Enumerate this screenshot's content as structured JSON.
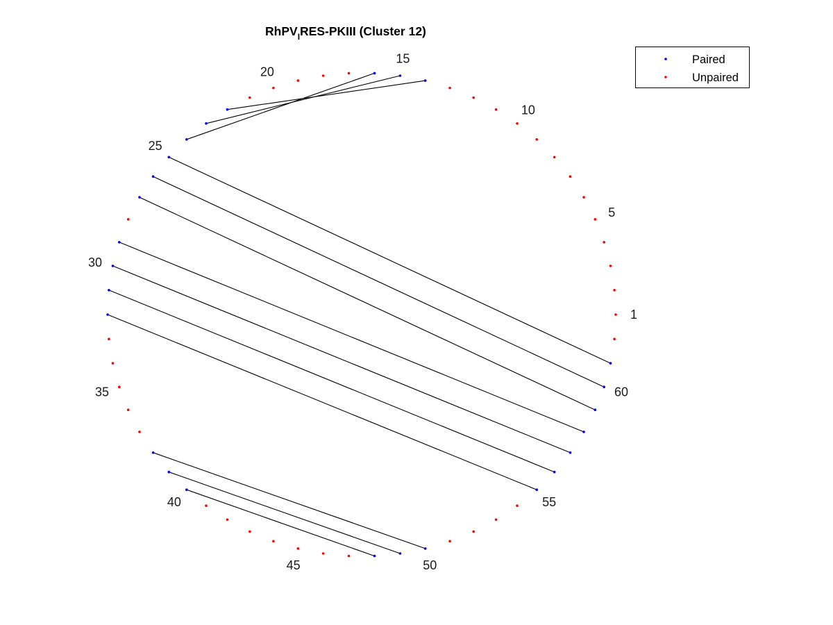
{
  "chart_data": {
    "type": "arc-diagram",
    "title": {
      "prefix": "RhPV",
      "subscript": "I",
      "suffix": "RES-PKIII (Cluster 12)"
    },
    "n_positions": 62,
    "start_angle_deg": 0,
    "direction": "counterclockwise",
    "number_labels": [
      1,
      5,
      10,
      15,
      20,
      25,
      30,
      35,
      40,
      45,
      50,
      55,
      60
    ],
    "pairs": [
      [
        14,
        22
      ],
      [
        15,
        23
      ],
      [
        16,
        24
      ],
      [
        25,
        61
      ],
      [
        26,
        60
      ],
      [
        27,
        59
      ],
      [
        29,
        58
      ],
      [
        30,
        57
      ],
      [
        31,
        56
      ],
      [
        32,
        55
      ],
      [
        38,
        50
      ],
      [
        39,
        49
      ],
      [
        40,
        48
      ]
    ],
    "series": [
      {
        "name": "Paired",
        "color": "#0000ff"
      },
      {
        "name": "Unpaired",
        "color": "#ff0000"
      }
    ],
    "line_color": "#000000",
    "legend": {
      "placement": "top-right"
    }
  }
}
